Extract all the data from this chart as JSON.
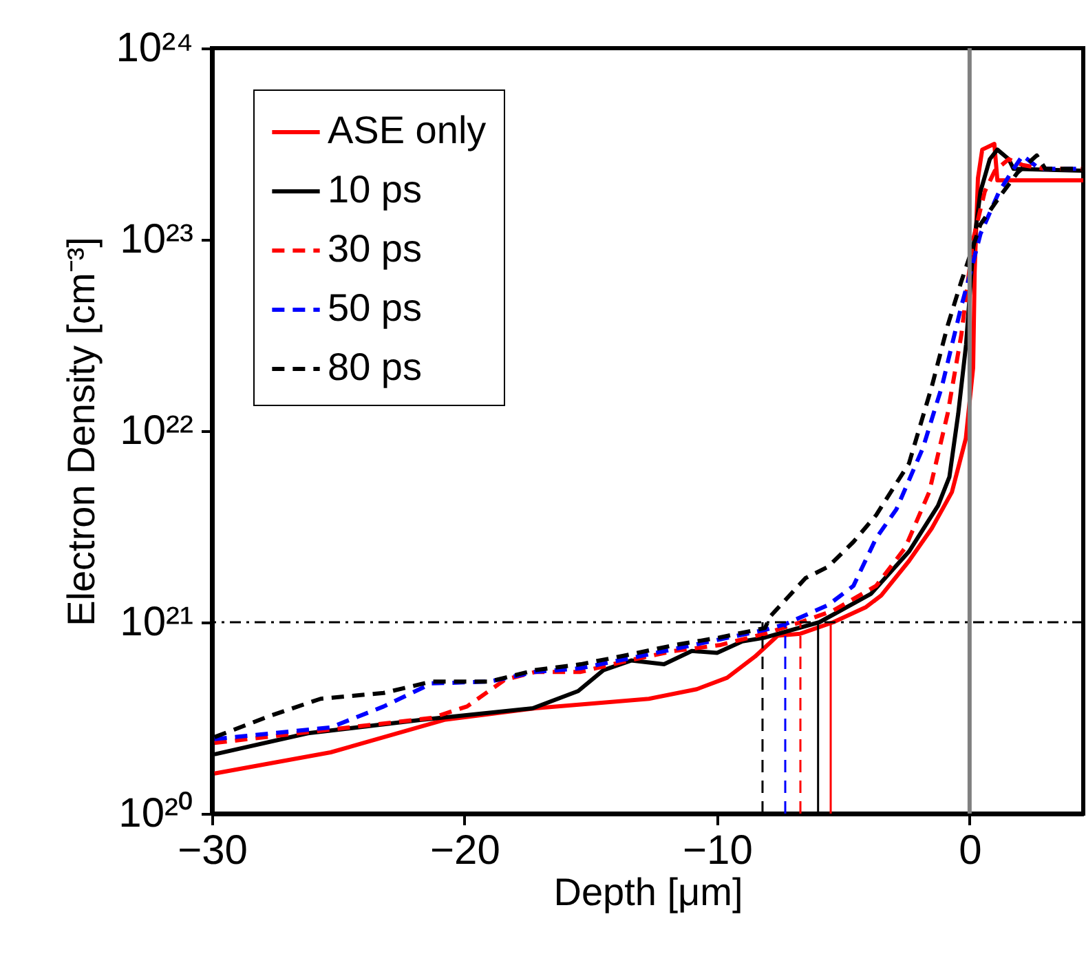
{
  "chart_data": {
    "type": "line",
    "xlabel": "Depth [μm]",
    "ylabel": "Electron Density [cm⁻³]",
    "log": "y",
    "xlim": [
      -30,
      4.5
    ],
    "ylim": [
      1e+20,
      1e+24
    ],
    "xticks": [
      {
        "value": -30,
        "label": "−30"
      },
      {
        "value": -20,
        "label": "−20"
      },
      {
        "value": -10,
        "label": "−10"
      },
      0
    ],
    "yticks": [
      {
        "value": 1e+20,
        "label": "10²⁰"
      },
      {
        "value": 1e+21,
        "label": "10²¹"
      },
      {
        "value": 1e+22,
        "label": "10²²"
      },
      {
        "value": 1e+23,
        "label": "10²³"
      },
      {
        "value": 1e+24,
        "label": "10²⁴"
      }
    ],
    "grid": false,
    "legend": "top left",
    "marker": "none",
    "ref_lines": [
      {
        "axis": "y",
        "value": 1e+21,
        "color": "#000000",
        "line_style": "dashdot"
      },
      {
        "axis": "x",
        "value": 0,
        "color": "#808080",
        "line_style": "solid"
      }
    ],
    "series": [
      {
        "name": "ASE only",
        "color": "#ff0000",
        "line_style": "solid",
        "x": [
          -29.9,
          -25.3,
          -20.8,
          -17.2,
          -12.7,
          -10.8,
          -9.6,
          -8.5,
          -7.6,
          -6.7,
          -5.4,
          -4.1,
          -3.5,
          -2.4,
          -1.5,
          -0.7,
          -0.15,
          0.14,
          0.2,
          0.33,
          0.5,
          0.98,
          1.1,
          1.9,
          4.5
        ],
        "values": [
          1.62e+20,
          2.09e+20,
          3.09e+20,
          3.55e+20,
          3.98e+20,
          4.47e+20,
          5.13e+20,
          6.61e+20,
          8.51e+20,
          8.71e+20,
          1e+21,
          1.2e+21,
          1.38e+21,
          2.09e+21,
          3.09e+21,
          4.79e+21,
          9.12e+21,
          2.14e+22,
          6.76e+22,
          2.09e+23,
          2.95e+23,
          3.16e+23,
          2.04e+23,
          2.04e+23,
          2.04e+23
        ]
      },
      {
        "name": "10 ps",
        "color": "#000000",
        "line_style": "solid",
        "x": [
          -29.9,
          -26.2,
          -21.7,
          -17.3,
          -15.5,
          -14.5,
          -13.4,
          -12.1,
          -11.0,
          -10.0,
          -9.0,
          -8.1,
          -5.95,
          -3.9,
          -2.4,
          -1.25,
          -0.8,
          -0.45,
          -0.14,
          0.14,
          0.43,
          0.8,
          1.1,
          1.55,
          1.74,
          4.5
        ],
        "values": [
          2.04e+20,
          2.63e+20,
          3.09e+20,
          3.55e+20,
          4.37e+20,
          5.62e+20,
          6.31e+20,
          6.03e+20,
          7.08e+20,
          6.92e+20,
          7.94e+20,
          8.32e+20,
          1e+21,
          1.41e+21,
          2.34e+21,
          4.07e+21,
          5.75e+21,
          1.23e+22,
          2.82e+22,
          8.91e+22,
          1.78e+23,
          2.63e+23,
          2.95e+23,
          2.63e+23,
          2.34e+23,
          2.29e+23
        ]
      },
      {
        "name": "30 ps",
        "color": "#ff0000",
        "line_style": "dashed",
        "x": [
          -29.9,
          -25.3,
          -21.3,
          -19.9,
          -18.4,
          -17.2,
          -15.4,
          -13.5,
          -11.7,
          -9.9,
          -8.1,
          -6.7,
          -5.4,
          -3.7,
          -2.55,
          -1.6,
          -0.87,
          -0.33,
          0.14,
          0.6,
          1.0,
          1.55,
          2.1,
          3.0,
          4.5
        ],
        "values": [
          2.34e+20,
          2.75e+20,
          3.16e+20,
          3.63e+20,
          5.01e+20,
          5.5e+20,
          5.5e+20,
          6.31e+20,
          7.08e+20,
          7.59e+20,
          8.71e+20,
          1e+21,
          1.15e+21,
          1.55e+21,
          2.45e+21,
          4.79e+21,
          1.23e+22,
          3.16e+22,
          1e+23,
          1.78e+23,
          2.29e+23,
          2.63e+23,
          2.45e+23,
          2.34e+23,
          2.34e+23
        ]
      },
      {
        "name": "50 ps",
        "color": "#0000ff",
        "line_style": "dashed",
        "x": [
          -29.9,
          -25.3,
          -23.2,
          -21.3,
          -19.0,
          -17.2,
          -15.4,
          -13.5,
          -11.7,
          -9.9,
          -8.1,
          -7.3,
          -5.6,
          -4.6,
          -3.7,
          -2.9,
          -1.85,
          -1.1,
          -0.33,
          0.04,
          0.43,
          1.17,
          1.74,
          2.1,
          2.77,
          4.5
        ],
        "values": [
          2.45e+20,
          2.82e+20,
          3.63e+20,
          4.79e+20,
          4.9e+20,
          5.5e+20,
          5.75e+20,
          6.46e+20,
          7.24e+20,
          8.13e+20,
          9.12e+20,
          9.77e+20,
          1.23e+21,
          1.55e+21,
          2.75e+21,
          3.89e+21,
          8.13e+21,
          1.7e+22,
          4.47e+22,
          6.76e+22,
          1.07e+23,
          1.78e+23,
          2.34e+23,
          2.75e+23,
          2.34e+23,
          2.34e+23
        ]
      },
      {
        "name": "80 ps",
        "color": "#000000",
        "line_style": "dashed",
        "x": [
          -29.9,
          -27.7,
          -25.7,
          -23.2,
          -21.3,
          -19.0,
          -17.2,
          -15.4,
          -13.5,
          -11.7,
          -9.9,
          -8.1,
          -7.9,
          -6.5,
          -5.6,
          -4.6,
          -3.7,
          -2.4,
          -1.5,
          -0.87,
          -0.33,
          0.43,
          1.17,
          1.9,
          2.66,
          3.0,
          4.5
        ],
        "values": [
          2.51e+20,
          3.24e+20,
          3.98e+20,
          4.27e+20,
          4.9e+20,
          4.9e+20,
          5.62e+20,
          6.03e+20,
          6.76e+20,
          7.59e+20,
          8.32e+20,
          9.33e+20,
          1.07e+21,
          1.7e+21,
          1.95e+21,
          2.63e+21,
          3.63e+21,
          6.76e+21,
          1.7e+22,
          3.55e+22,
          6.03e+22,
          1.2e+23,
          1.66e+23,
          2.24e+23,
          2.75e+23,
          2.34e+23,
          2.34e+23
        ]
      },
      {
        "color": "#ff0000",
        "line_style": "solid",
        "x": [
          -5.5,
          -5.5
        ],
        "values": [
          1e+20,
          1e+21
        ]
      },
      {
        "color": "#000000",
        "line_style": "solid",
        "x": [
          -6.0,
          -6.0
        ],
        "values": [
          1e+20,
          1e+21
        ]
      },
      {
        "color": "#ff0000",
        "line_style": "dashed",
        "x": [
          -6.7,
          -6.7
        ],
        "values": [
          1e+20,
          1e+21
        ]
      },
      {
        "color": "#0000ff",
        "line_style": "dashed",
        "x": [
          -7.3,
          -7.3
        ],
        "values": [
          1e+20,
          1e+21
        ]
      },
      {
        "color": "#000000",
        "line_style": "dashed",
        "x": [
          -8.2,
          -8.2
        ],
        "values": [
          1e+20,
          1e+21
        ]
      }
    ]
  }
}
